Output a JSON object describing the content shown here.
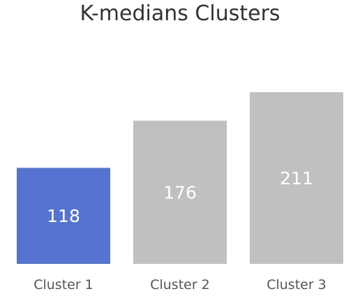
{
  "chart_data": {
    "type": "bar",
    "title": "K-medians Clusters",
    "categories": [
      "Cluster 1",
      "Cluster 2",
      "Cluster 3"
    ],
    "values": [
      118,
      176,
      211
    ],
    "ylim": [
      0,
      211
    ],
    "xlabel": "",
    "ylabel": "",
    "grid": false,
    "highlight_index": 0,
    "colors": {
      "highlight": "#5573d1",
      "default": "#c0c0c0",
      "value_label": "#ffffff",
      "tick_label": "#555555",
      "title": "#333333"
    }
  }
}
